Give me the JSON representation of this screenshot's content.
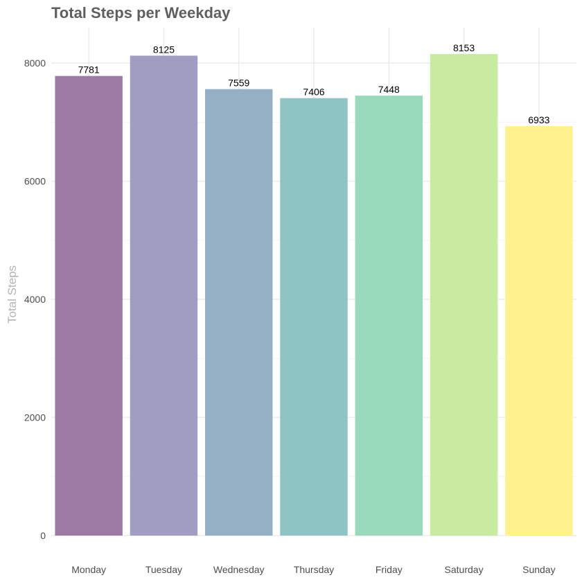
{
  "chart_data": {
    "type": "bar",
    "title": "Total Steps per Weekday",
    "xlabel": "",
    "ylabel": "Total Steps",
    "categories": [
      "Monday",
      "Tuesday",
      "Wednesday",
      "Thursday",
      "Friday",
      "Saturday",
      "Sunday"
    ],
    "values": [
      7781,
      8125,
      7559,
      7406,
      7448,
      8153,
      6933
    ],
    "data_labels": [
      "7781",
      "8125",
      "7559",
      "7406",
      "7448",
      "8153",
      "6933"
    ],
    "ylim": [
      0,
      8500
    ],
    "yticks": [
      0,
      2000,
      4000,
      6000,
      8000
    ],
    "ytick_labels": [
      "0",
      "2000",
      "4000",
      "6000",
      "8000"
    ],
    "grid": true,
    "legend": "none",
    "bar_colors": [
      "#9c7aa3",
      "#a19dc2",
      "#95b0c4",
      "#8fc4c4",
      "#98dabb",
      "#c8eb9f",
      "#fff18c"
    ]
  }
}
